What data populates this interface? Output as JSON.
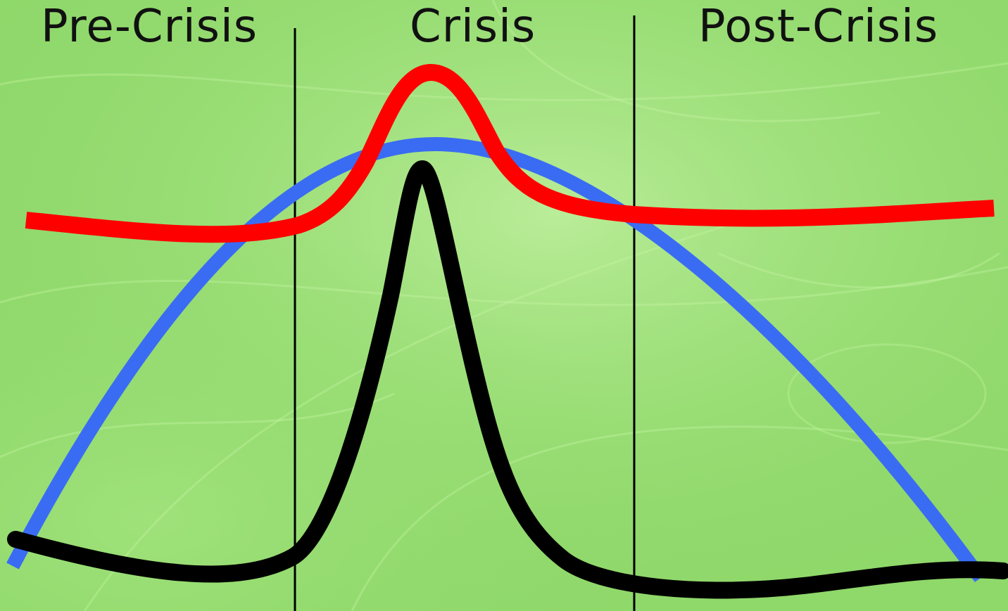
{
  "phases": [
    {
      "label": "Pre-Crisis"
    },
    {
      "label": "Crisis"
    },
    {
      "label": "Post-Crisis"
    }
  ],
  "colors": {
    "background": "#8fd86a",
    "curve_blue": "#3a6cf3",
    "curve_red": "#ff0000",
    "curve_black": "#000000",
    "divider": "#000000",
    "label_text": "#111111"
  }
}
